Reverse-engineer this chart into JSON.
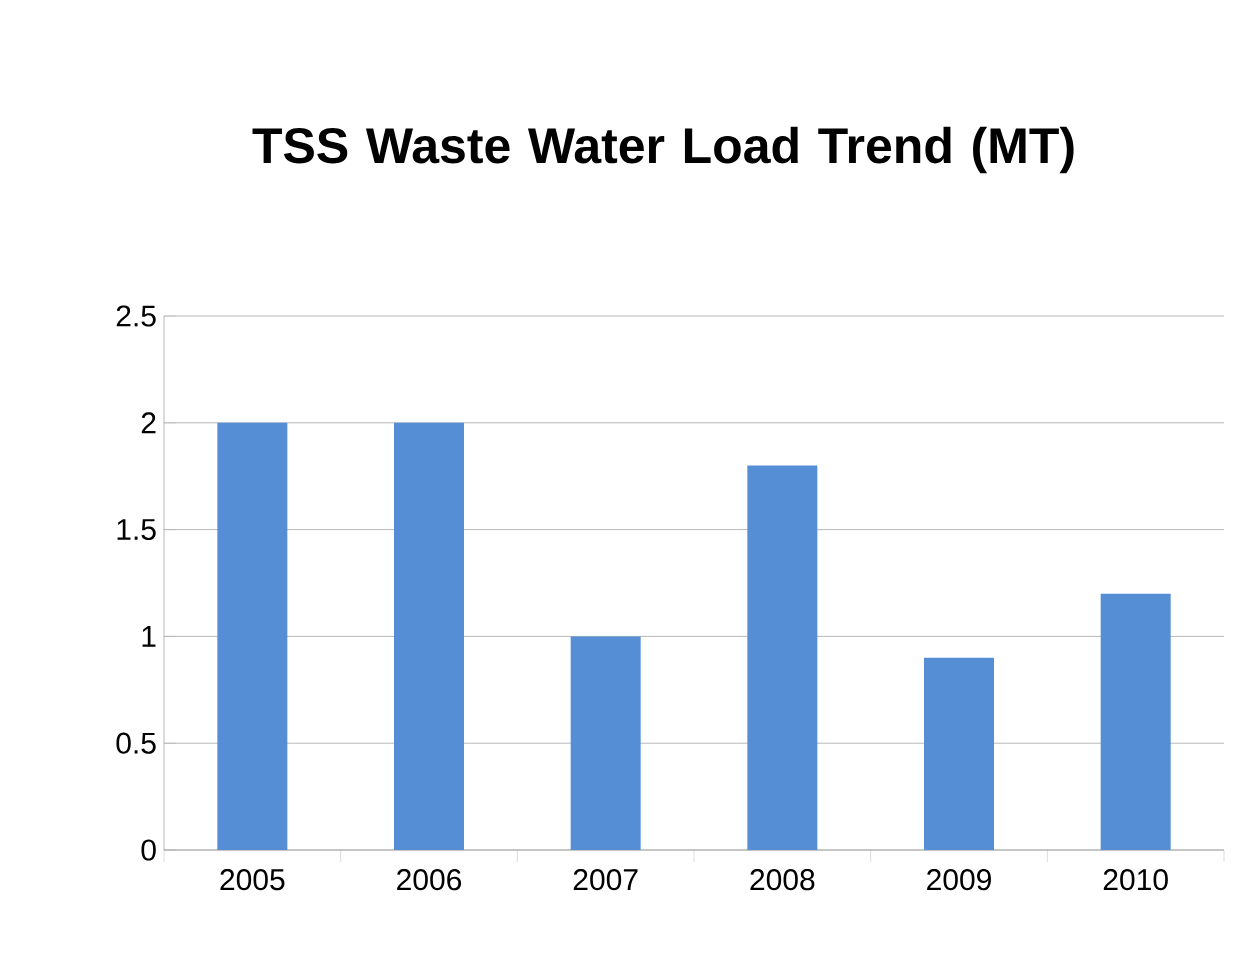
{
  "chart_data": {
    "type": "bar",
    "title": "TSS Waste Water Load Trend (MT)",
    "categories": [
      "2005",
      "2006",
      "2007",
      "2008",
      "2009",
      "2010"
    ],
    "values": [
      2,
      2,
      1,
      1.8,
      0.9,
      1.2
    ],
    "color": "#558ed5",
    "ylim": [
      0,
      2.5
    ],
    "yticks": [
      0,
      0.5,
      1,
      1.5,
      2,
      2.5
    ],
    "grid": "y"
  }
}
